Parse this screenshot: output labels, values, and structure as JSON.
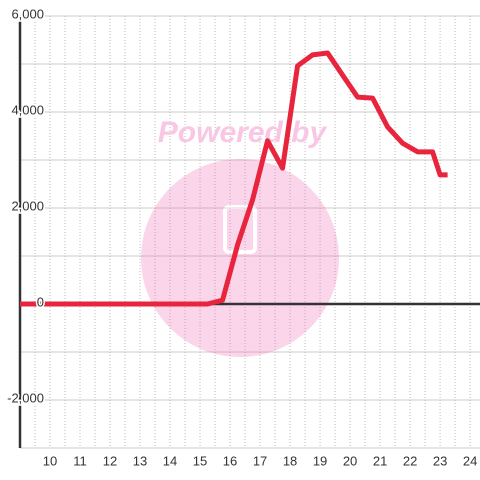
{
  "chart_data": {
    "type": "line",
    "annotation": "Powered by",
    "x": [
      9,
      15.25,
      15.75,
      16.25,
      16.75,
      17.25,
      17.75,
      18.25,
      18.75,
      19.25,
      19.75,
      20.25,
      20.75,
      21.25,
      21.75,
      22.25,
      22.75,
      23.0,
      23.25
    ],
    "series": [
      {
        "name": null,
        "color": "#e8253d",
        "values": [
          0,
          0,
          80,
          1230,
          2170,
          3400,
          2830,
          4960,
          5190,
          5230,
          4770,
          4310,
          4290,
          3690,
          3350,
          3170,
          3170,
          2690,
          2690
        ]
      }
    ],
    "xlim": [
      9,
      24.33
    ],
    "xticks": [
      10,
      11,
      12,
      13,
      14,
      15,
      16,
      17,
      18,
      19,
      20,
      21,
      22,
      23,
      24
    ],
    "xminor": [
      9.5,
      10.5,
      11.5,
      12.5,
      13.5,
      14.5,
      15.5,
      16.5,
      17.5,
      18.5,
      19.5,
      20.5,
      21.5,
      22.5,
      23.5
    ],
    "ylim": [
      -3000,
      6000
    ],
    "yticks": [
      {
        "value": -2000,
        "label": "-2,000"
      },
      0,
      {
        "value": 2000,
        "label": "2,000"
      },
      {
        "value": 4000,
        "label": "4,000"
      },
      {
        "value": 6000,
        "label": "6,000"
      }
    ],
    "yminor": [
      -3000,
      -1000,
      1000,
      3000,
      5000
    ],
    "grid": true
  }
}
